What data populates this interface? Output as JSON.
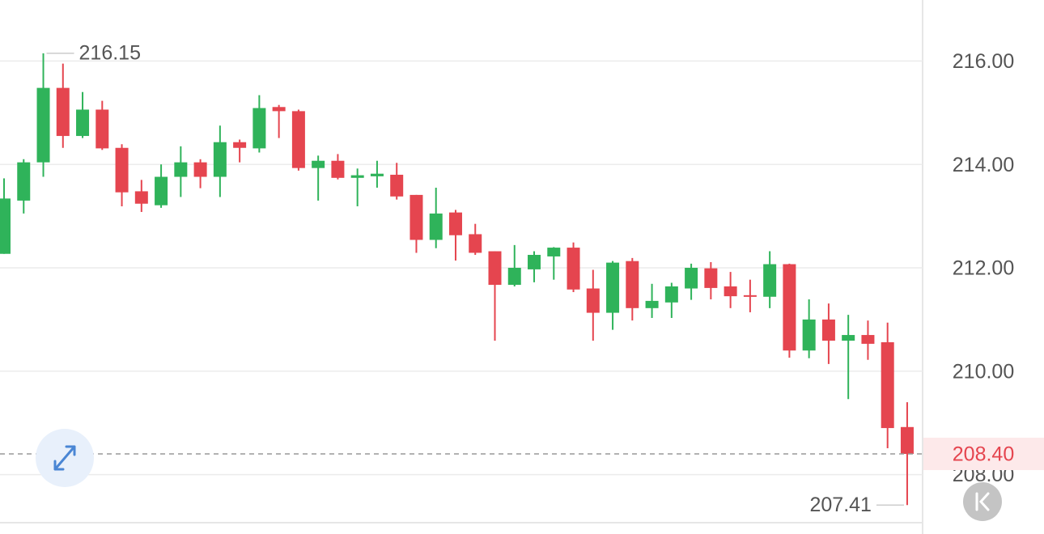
{
  "chart_data": {
    "type": "candlestick",
    "open": [
      212.27,
      213.3,
      214.04,
      215.48,
      214.55,
      215.06,
      214.32,
      213.48,
      213.21,
      213.76,
      214.04,
      213.76,
      214.43,
      214.31,
      215.11,
      215.03,
      213.93,
      214.07,
      213.74,
      213.77,
      213.8,
      213.41,
      212.54,
      213.07,
      212.65,
      212.32,
      211.67,
      211.97,
      212.22,
      212.39,
      211.6,
      211.13,
      212.13,
      211.22,
      211.33,
      211.6,
      211.99,
      211.64,
      211.47,
      211.44,
      212.07,
      210.4,
      211.0,
      210.59,
      210.7,
      210.56,
      208.92
    ],
    "high": [
      213.73,
      214.1,
      216.15,
      215.95,
      215.4,
      215.23,
      214.39,
      213.7,
      214.0,
      214.35,
      214.1,
      214.75,
      214.48,
      215.34,
      215.15,
      215.06,
      214.17,
      214.2,
      213.92,
      214.07,
      214.03,
      213.41,
      213.55,
      213.12,
      212.85,
      212.32,
      212.44,
      212.32,
      212.4,
      212.49,
      211.96,
      212.13,
      212.19,
      211.69,
      211.71,
      212.08,
      212.11,
      211.92,
      211.77,
      212.32,
      212.08,
      211.39,
      211.31,
      211.09,
      210.98,
      210.94,
      209.4
    ],
    "low": [
      212.27,
      213.05,
      213.76,
      214.32,
      214.51,
      214.28,
      213.19,
      213.08,
      213.16,
      213.37,
      213.54,
      213.37,
      214.04,
      214.23,
      214.51,
      213.88,
      213.3,
      213.71,
      213.19,
      213.55,
      213.32,
      212.29,
      212.38,
      212.14,
      212.25,
      210.59,
      211.64,
      211.72,
      211.77,
      211.53,
      210.59,
      210.8,
      210.98,
      211.03,
      211.03,
      211.38,
      211.39,
      211.22,
      211.14,
      211.22,
      210.26,
      210.25,
      210.14,
      209.46,
      210.22,
      208.51,
      207.41
    ],
    "close": [
      213.34,
      214.04,
      215.48,
      214.55,
      215.06,
      214.31,
      213.46,
      213.24,
      213.76,
      214.04,
      213.76,
      214.43,
      214.32,
      215.09,
      215.03,
      213.93,
      214.07,
      213.74,
      213.79,
      213.82,
      213.38,
      212.54,
      213.05,
      212.63,
      212.29,
      211.67,
      212.0,
      212.25,
      212.39,
      211.58,
      211.13,
      212.1,
      211.22,
      211.36,
      211.64,
      212.0,
      211.61,
      211.45,
      211.44,
      212.07,
      210.4,
      211.0,
      210.59,
      210.7,
      210.53,
      208.9,
      208.4
    ],
    "up_color": "#2fb35a",
    "down_color": "#e5454f",
    "ylim": [
      207.07,
      217.18
    ],
    "yticks": [
      {
        "value": 208,
        "label": "208.00"
      },
      {
        "value": 210,
        "label": "210.00"
      },
      {
        "value": 212,
        "label": "212.00"
      },
      {
        "value": 214,
        "label": "214.00"
      },
      {
        "value": 216,
        "label": "216.00"
      }
    ],
    "grid": true,
    "max_marker": 216.15,
    "min_marker": 207.41,
    "last_price": {
      "value": 208.4,
      "label": "208.40"
    }
  }
}
